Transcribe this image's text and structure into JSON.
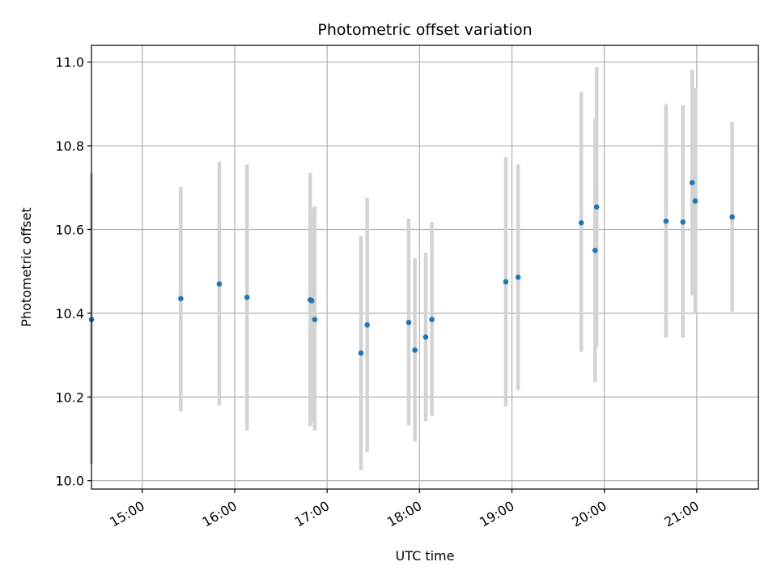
{
  "chart_data": {
    "type": "scatter",
    "title": "Photometric offset variation",
    "xlabel": "UTC time",
    "ylabel": "Photometric offset",
    "x_axis_type": "time",
    "xlim": [
      "14:27",
      "21:40"
    ],
    "ylim": [
      9.98,
      11.04
    ],
    "x_ticks": [
      "15:00",
      "16:00",
      "17:00",
      "18:00",
      "19:00",
      "20:00",
      "21:00"
    ],
    "y_ticks": [
      10.0,
      10.2,
      10.4,
      10.6,
      10.8,
      11.0
    ],
    "y_tick_labels": [
      "10.0",
      "10.2",
      "10.4",
      "10.6",
      "10.8",
      "11.0"
    ],
    "grid": true,
    "point_color": "#1f77b4",
    "errorbar_color": "#d3d3d3",
    "points": [
      {
        "t": "14:27",
        "y": 10.385,
        "lo": 10.04,
        "hi": 10.735
      },
      {
        "t": "15:25",
        "y": 10.435,
        "lo": 10.165,
        "hi": 10.702
      },
      {
        "t": "15:50",
        "y": 10.47,
        "lo": 10.18,
        "hi": 10.762
      },
      {
        "t": "16:08",
        "y": 10.438,
        "lo": 10.12,
        "hi": 10.755
      },
      {
        "t": "16:49",
        "y": 10.432,
        "lo": 10.13,
        "hi": 10.735
      },
      {
        "t": "16:50",
        "y": 10.43,
        "lo": 10.14,
        "hi": 10.65
      },
      {
        "t": "16:52",
        "y": 10.385,
        "lo": 10.12,
        "hi": 10.655
      },
      {
        "t": "17:22",
        "y": 10.305,
        "lo": 10.025,
        "hi": 10.585
      },
      {
        "t": "17:26",
        "y": 10.372,
        "lo": 10.068,
        "hi": 10.676
      },
      {
        "t": "17:53",
        "y": 10.378,
        "lo": 10.132,
        "hi": 10.626
      },
      {
        "t": "17:57",
        "y": 10.312,
        "lo": 10.094,
        "hi": 10.532
      },
      {
        "t": "18:04",
        "y": 10.343,
        "lo": 10.142,
        "hi": 10.545
      },
      {
        "t": "18:08",
        "y": 10.385,
        "lo": 10.155,
        "hi": 10.618
      },
      {
        "t": "18:56",
        "y": 10.475,
        "lo": 10.177,
        "hi": 10.773
      },
      {
        "t": "19:04",
        "y": 10.486,
        "lo": 10.217,
        "hi": 10.756
      },
      {
        "t": "19:45",
        "y": 10.616,
        "lo": 10.308,
        "hi": 10.928
      },
      {
        "t": "19:54",
        "y": 10.55,
        "lo": 10.235,
        "hi": 10.865
      },
      {
        "t": "19:55",
        "y": 10.654,
        "lo": 10.32,
        "hi": 10.988
      },
      {
        "t": "20:40",
        "y": 10.62,
        "lo": 10.342,
        "hi": 10.9
      },
      {
        "t": "20:51",
        "y": 10.618,
        "lo": 10.342,
        "hi": 10.897
      },
      {
        "t": "20:57",
        "y": 10.712,
        "lo": 10.443,
        "hi": 10.982
      },
      {
        "t": "20:59",
        "y": 10.668,
        "lo": 10.398,
        "hi": 10.938
      },
      {
        "t": "21:23",
        "y": 10.63,
        "lo": 10.404,
        "hi": 10.857
      }
    ]
  }
}
